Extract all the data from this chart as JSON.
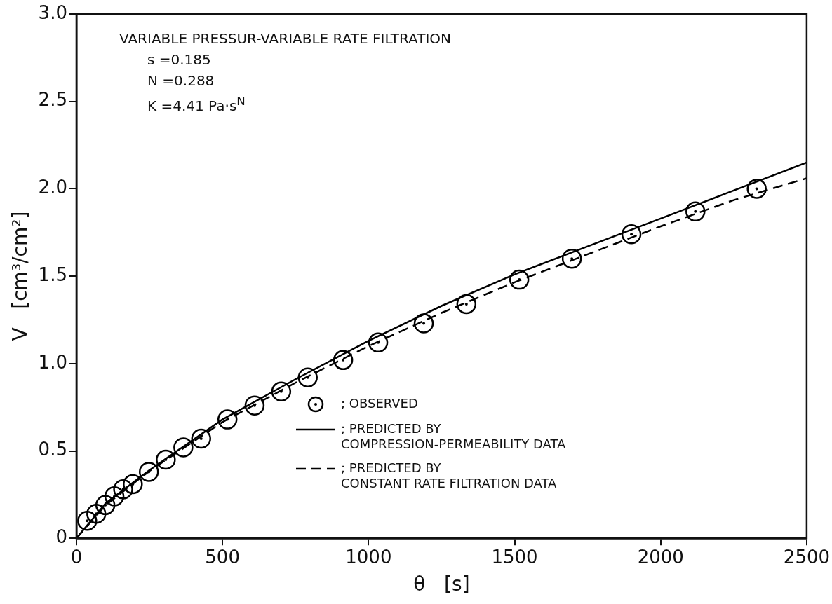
{
  "chart_data": {
    "type": "scatter",
    "xlabel": "θ   [s]",
    "ylabel": "V   [cm³/cm²]",
    "annotations": [
      "VARIABLE PRESSUR-VARIABLE RATE FILTRATION",
      "s =0.185",
      "N =0.288",
      "K =4.41 Pa·s$^{N}$"
    ],
    "xlim": [
      0,
      2500
    ],
    "xticks": [
      0,
      500,
      1000,
      1500,
      2000,
      2500
    ],
    "ylim": [
      0,
      3
    ],
    "yticks": [
      0,
      0.5,
      {
        "value": 1,
        "label": "1.0"
      },
      1.5,
      {
        "value": 2,
        "label": "2.0"
      },
      2.5,
      {
        "value": 3,
        "label": "3.0"
      }
    ],
    "grid": false,
    "legend": "bottom right",
    "series": [
      {
        "name": "; OBSERVED",
        "marker": "circle",
        "color": "#000000",
        "x": [
          37,
          68,
          99,
          130,
          160,
          193,
          248,
          306,
          366,
          427,
          517,
          610,
          701,
          792,
          913,
          1033,
          1189,
          1335,
          1516,
          1696,
          1900,
          2119,
          2329
        ],
        "values": [
          0.1,
          0.14,
          0.19,
          0.24,
          0.28,
          0.31,
          0.38,
          0.45,
          0.52,
          0.57,
          0.68,
          0.76,
          0.84,
          0.92,
          1.02,
          1.12,
          1.23,
          1.34,
          1.48,
          1.6,
          1.74,
          1.87,
          2.0
        ]
      },
      {
        "name": "; PREDICTED BY\nCOMPRESSION-PERMEABILITY DATA",
        "type": "line",
        "marker": "none",
        "line_style": "solid",
        "color": "#000000",
        "x": [
          0,
          100,
          250,
          500,
          750,
          1000,
          1250,
          1500,
          1750,
          2000,
          2250,
          2500
        ],
        "values": [
          0,
          0.2,
          0.39,
          0.68,
          0.91,
          1.13,
          1.33,
          1.51,
          1.67,
          1.83,
          1.99,
          2.15
        ]
      },
      {
        "name": "; PREDICTED BY\nCONSTANT RATE FILTRATION DATA",
        "type": "line",
        "marker": "none",
        "line_style": "dashed",
        "color": "#000000",
        "x": [
          0,
          100,
          250,
          500,
          750,
          1000,
          1250,
          1500,
          1750,
          2000,
          2250,
          2500
        ],
        "values": [
          0,
          0.19,
          0.385,
          0.665,
          0.89,
          1.1,
          1.29,
          1.465,
          1.625,
          1.785,
          1.935,
          2.06
        ]
      }
    ]
  }
}
